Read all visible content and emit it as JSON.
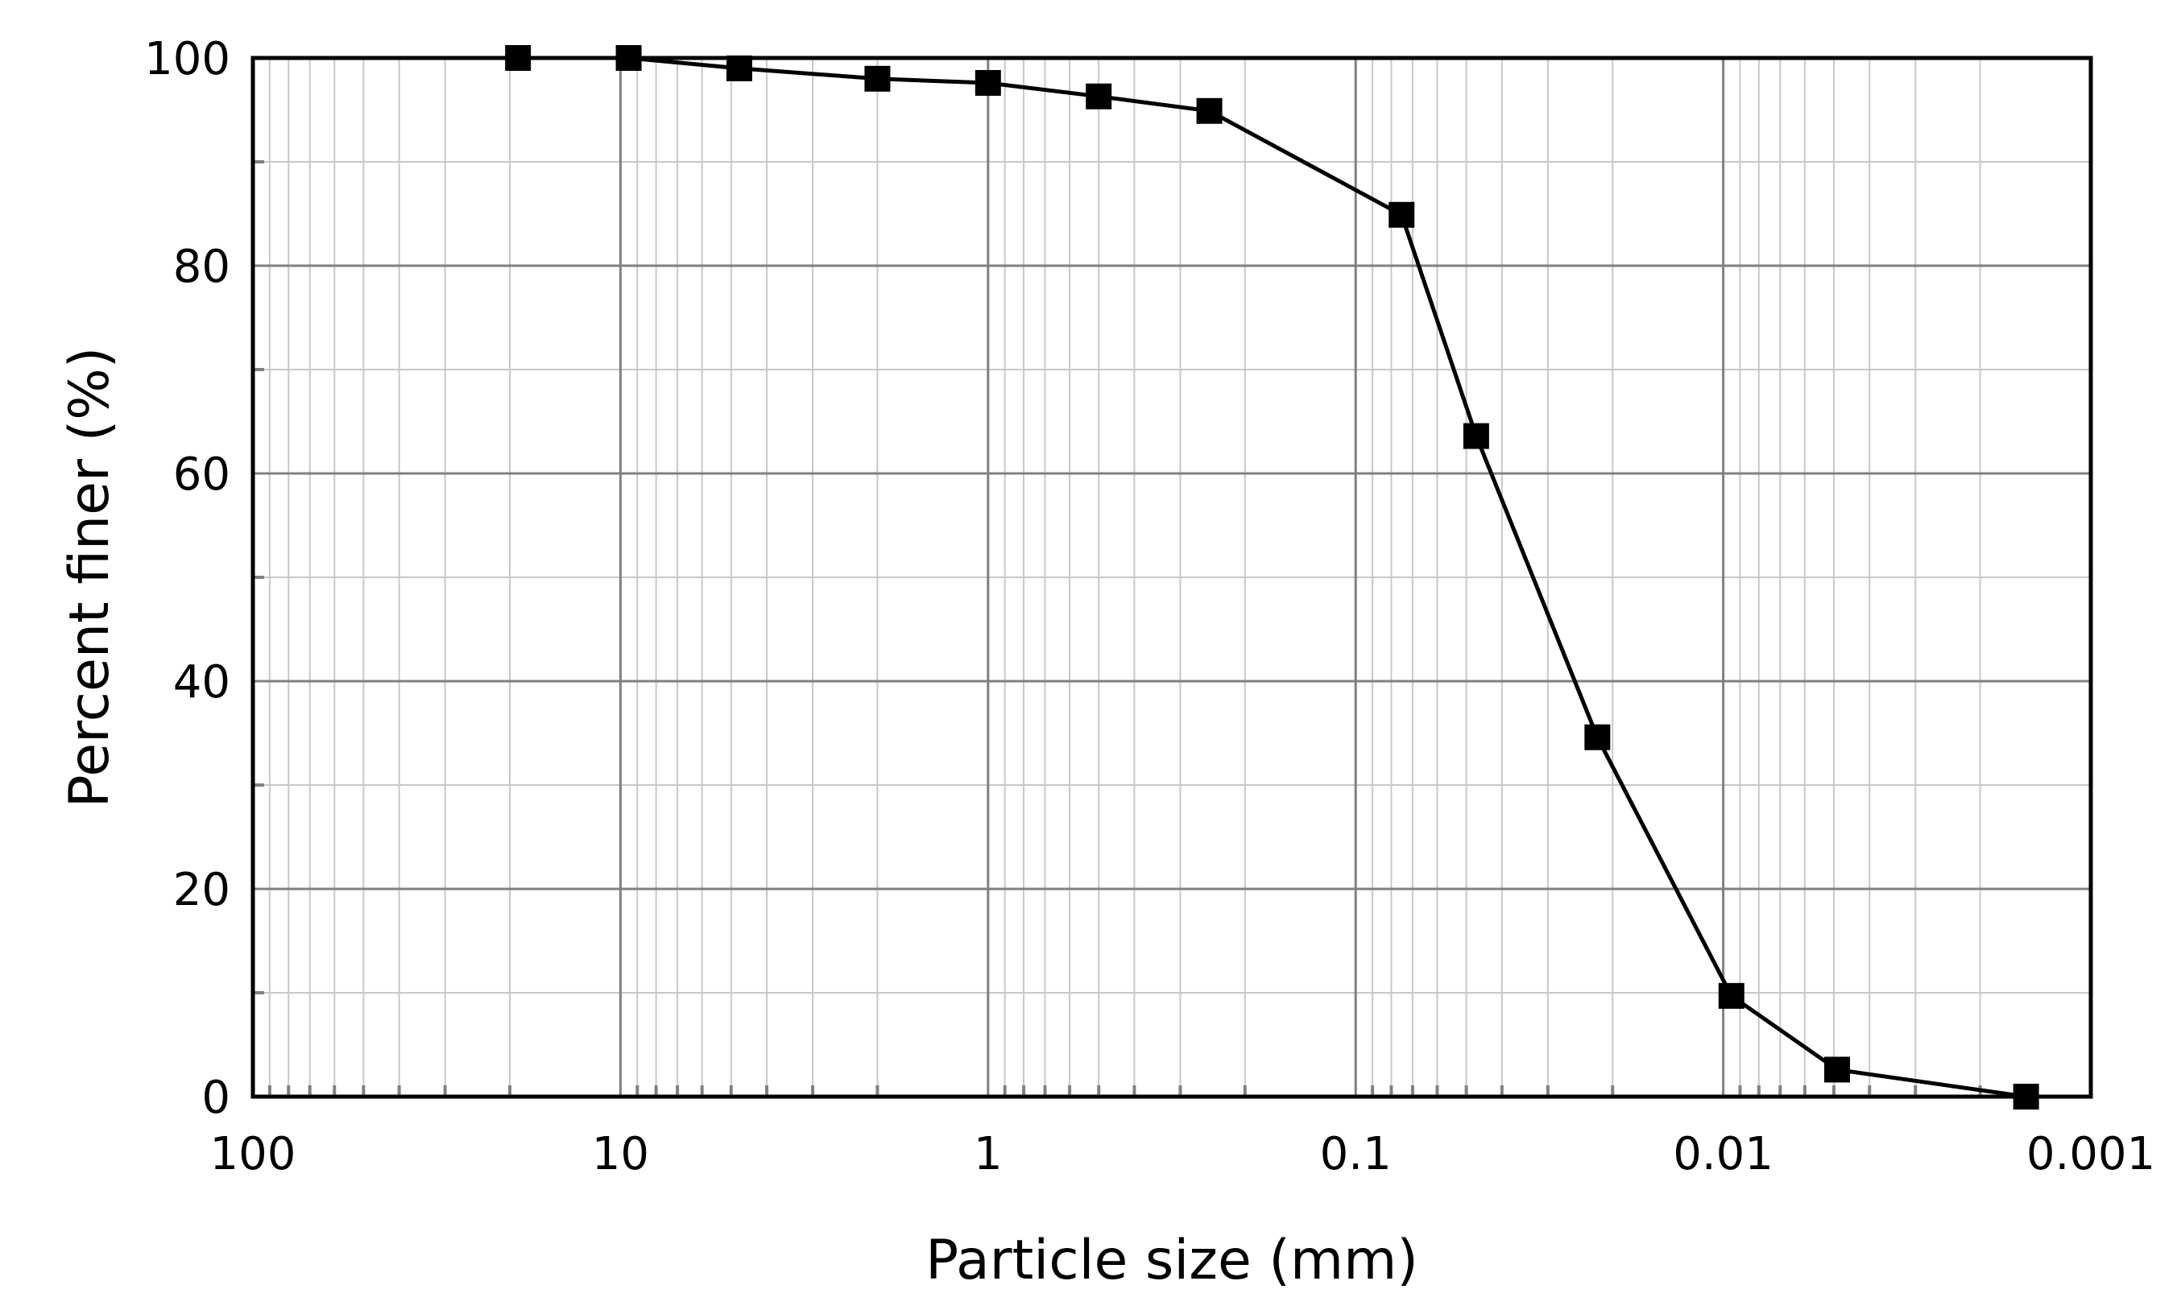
{
  "chart_data": {
    "type": "scatter",
    "xlabel": "Particle size (mm)",
    "ylabel": "Percent finer (%)",
    "x_scale": "log",
    "x_reversed": true,
    "xlim": [
      100,
      0.001
    ],
    "ylim": [
      0,
      100
    ],
    "x_ticks": [
      "100",
      "10",
      "1",
      "0.1",
      "0.01",
      "0.001"
    ],
    "y_ticks": [
      "0",
      "20",
      "40",
      "60",
      "80",
      "100"
    ],
    "grid": true,
    "marker": "square",
    "line_color": "#000000",
    "grid_major_color": "#808080",
    "grid_minor_color": "#c8c8c8",
    "series": [
      {
        "x": [
          19,
          9.5,
          4.75,
          2,
          1.0,
          0.5,
          0.25,
          0.075,
          0.047,
          0.022,
          0.0095,
          0.0049,
          0.0015
        ],
        "y": [
          100,
          100,
          99,
          98,
          97.6,
          96.3,
          94.9,
          84.9,
          63.6,
          34.6,
          9.7,
          2.6,
          0
        ]
      }
    ]
  }
}
